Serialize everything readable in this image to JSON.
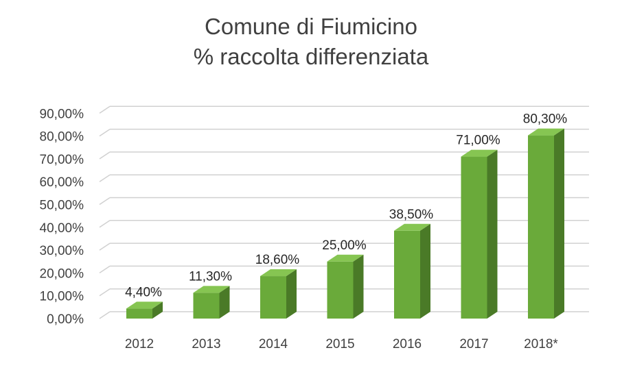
{
  "chart_data": {
    "type": "bar",
    "title": "Comune di Fiumicino",
    "subtitle": "% raccolta differenziata",
    "categories": [
      "2012",
      "2013",
      "2014",
      "2015",
      "2016",
      "2017",
      "2018*"
    ],
    "values": [
      4.4,
      11.3,
      18.6,
      25.0,
      38.5,
      71.0,
      80.3
    ],
    "data_labels": [
      "4,40%",
      "11,30%",
      "18,60%",
      "25,00%",
      "38,50%",
      "71,00%",
      "80,30%"
    ],
    "y_ticks": [
      "0,00%",
      "10,00%",
      "20,00%",
      "30,00%",
      "40,00%",
      "50,00%",
      "60,00%",
      "70,00%",
      "80,00%",
      "90,00%"
    ],
    "ylim": [
      0,
      90
    ],
    "xlabel": "",
    "ylabel": "",
    "grid": true,
    "legend": "none",
    "bar_color": "#6aaa3a",
    "bar_side_color": "#4a7a27",
    "bar_top_color": "#86c552",
    "grid_color": "#d0d0d0"
  }
}
